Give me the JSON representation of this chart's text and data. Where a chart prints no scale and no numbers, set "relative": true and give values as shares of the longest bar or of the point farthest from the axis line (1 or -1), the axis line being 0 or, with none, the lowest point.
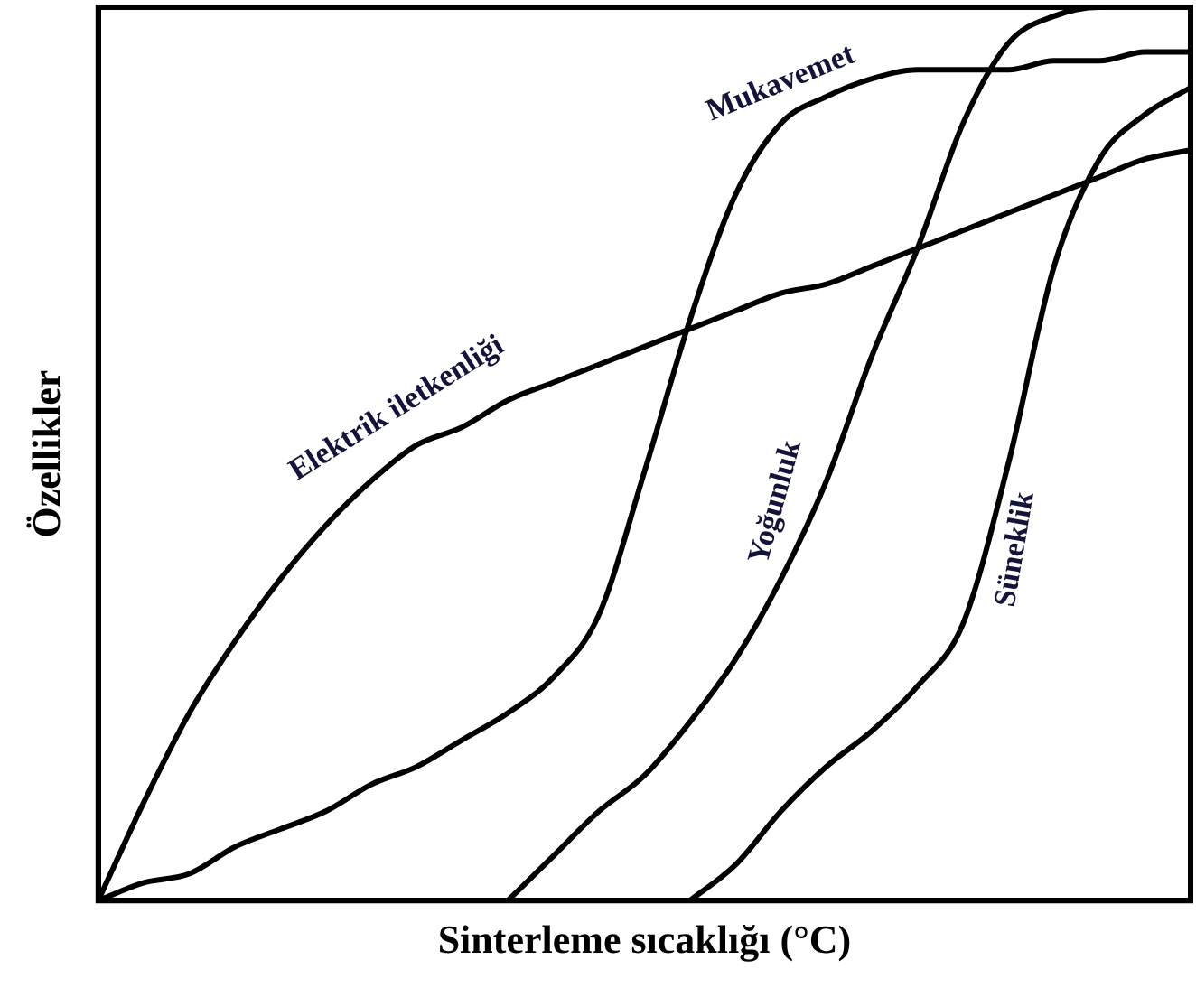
{
  "chart_data": {
    "type": "line",
    "relative": true,
    "xlabel": "Sinterleme sıcaklığı (°C)",
    "ylabel": "Özellikler",
    "legend": false,
    "grid": false,
    "marker": "none",
    "line_style": "solid",
    "categories": [
      null,
      null,
      null,
      null,
      null,
      null,
      null,
      null,
      null,
      null,
      null,
      null,
      null,
      null,
      null,
      null,
      null,
      null,
      null,
      null,
      null,
      null,
      null,
      null,
      null
    ],
    "series": [
      {
        "name": "Elektrik iletkenliği",
        "color": "#000000",
        "values": [
          0,
          0.11,
          0.21,
          0.29,
          0.36,
          0.42,
          0.47,
          0.51,
          0.53,
          0.56,
          0.58,
          0.6,
          0.62,
          0.64,
          0.66,
          0.68,
          0.69,
          0.71,
          0.73,
          0.75,
          0.77,
          0.79,
          0.81,
          0.83,
          0.84
        ]
      },
      {
        "name": "Mukavemet",
        "color": "#000000",
        "values": [
          0,
          0.02,
          0.03,
          0.06,
          0.08,
          0.1,
          0.13,
          0.15,
          0.18,
          0.21,
          0.25,
          0.32,
          0.48,
          0.65,
          0.79,
          0.87,
          0.9,
          0.92,
          0.93,
          0.93,
          0.93,
          0.94,
          0.94,
          0.95,
          0.95
        ]
      },
      {
        "name": "Yoğunluk",
        "color": "#000000",
        "values": [
          null,
          null,
          null,
          null,
          null,
          null,
          null,
          null,
          null,
          0,
          0.05,
          0.1,
          0.14,
          0.2,
          0.27,
          0.36,
          0.47,
          0.61,
          0.73,
          0.87,
          0.96,
          0.99,
          1,
          1,
          1
        ]
      },
      {
        "name": "Süneklik",
        "color": "#000000",
        "values": [
          null,
          null,
          null,
          null,
          null,
          null,
          null,
          null,
          null,
          null,
          null,
          null,
          null,
          0,
          0.04,
          0.1,
          0.15,
          0.19,
          0.24,
          0.31,
          0.49,
          0.71,
          0.83,
          0.88,
          0.91
        ]
      }
    ]
  }
}
